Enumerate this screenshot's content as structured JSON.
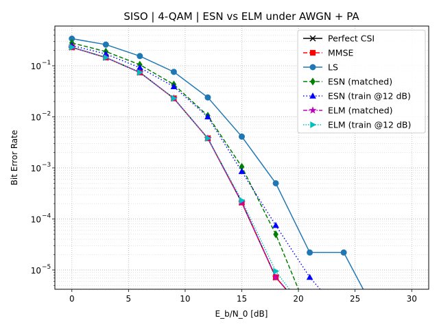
{
  "chart_data": {
    "type": "line",
    "title": "SISO | 4-QAM | ESN vs ELM under AWGN + PA",
    "xlabel": "E_b/N_0 [dB]",
    "ylabel": "Bit Error Rate",
    "yscale": "log",
    "xlim": [
      -1.5,
      31.5
    ],
    "ylim": [
      4.2e-06,
      0.6
    ],
    "xticks": [
      0,
      5,
      10,
      15,
      20,
      25,
      30
    ],
    "xtick_labels": [
      "0",
      "5",
      "10",
      "15",
      "20",
      "25",
      "30"
    ],
    "yticks": [
      1e-05,
      0.0001,
      0.001,
      0.01,
      0.1
    ],
    "ytick_labels": [
      "10",
      "10",
      "10",
      "10",
      "10"
    ],
    "ytick_exponents": [
      "−5",
      "−4",
      "−3",
      "−2",
      "−1"
    ],
    "grid": true,
    "legend_position": "top-right",
    "x": [
      0,
      3,
      6,
      9,
      12,
      15,
      18,
      21,
      24,
      27,
      30
    ],
    "series": [
      {
        "name": "Perfect CSI",
        "color": "#000000",
        "dash": "solid",
        "marker": "x",
        "values": [
          0.23,
          0.145,
          0.074,
          0.023,
          0.0038,
          0.00021,
          7.2e-06,
          0,
          0,
          0,
          0
        ]
      },
      {
        "name": "MMSE",
        "color": "#ff0000",
        "dash": "dashed",
        "marker": "square",
        "values": [
          0.23,
          0.145,
          0.074,
          0.023,
          0.0038,
          0.00021,
          7.2e-06,
          0,
          0,
          0,
          0
        ]
      },
      {
        "name": "LS",
        "color": "#1f77b4",
        "dash": "solid",
        "marker": "circle",
        "values": [
          0.34,
          0.26,
          0.155,
          0.076,
          0.024,
          0.0041,
          0.0005,
          2.2e-05,
          2.2e-05,
          0,
          0
        ]
      },
      {
        "name": "ESN (matched)",
        "color": "#008000",
        "dash": "dashed",
        "marker": "diamond",
        "values": [
          0.28,
          0.19,
          0.105,
          0.043,
          0.0105,
          0.00105,
          5e-05,
          0,
          0,
          0,
          0
        ]
      },
      {
        "name": "ESN (train @12 dB)",
        "color": "#0000ff",
        "dash": "dotted",
        "marker": "triangle-up",
        "values": [
          0.25,
          0.17,
          0.092,
          0.039,
          0.01,
          0.00085,
          7.5e-05,
          7.2e-06,
          0,
          0,
          0
        ]
      },
      {
        "name": "ELM (matched)",
        "color": "#bf00bf",
        "dash": "dashdot",
        "marker": "star",
        "values": [
          0.23,
          0.145,
          0.074,
          0.023,
          0.0038,
          0.00021,
          7.2e-06,
          0,
          0,
          0,
          0
        ]
      },
      {
        "name": "ELM (train @12 dB)",
        "color": "#00bfbf",
        "dash": "densedot",
        "marker": "triangle-right",
        "values": [
          0.23,
          0.145,
          0.074,
          0.023,
          0.0038,
          0.00023,
          9.5e-06,
          0,
          0,
          0,
          0
        ]
      }
    ]
  }
}
